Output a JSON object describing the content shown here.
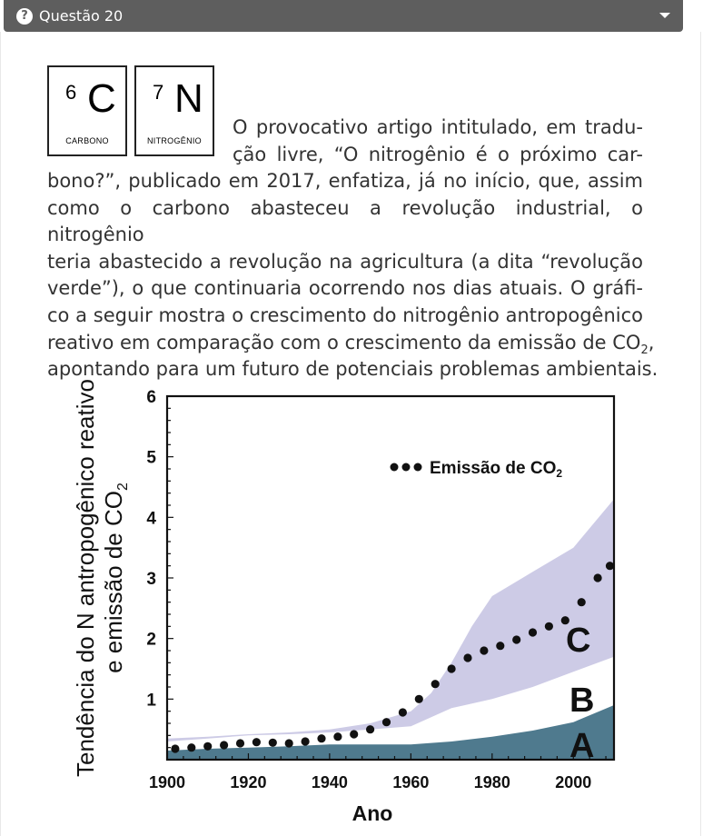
{
  "header": {
    "icon": "question-circle-icon",
    "title": "Questão 20",
    "caret": "chevron-down-icon"
  },
  "cards": [
    {
      "number": "6",
      "symbol": "C",
      "name": "CARBONO"
    },
    {
      "number": "7",
      "symbol": "N",
      "name": "NITROGÊNIO"
    }
  ],
  "text": {
    "l1": "O provocativo artigo intitulado, em tradu-",
    "l2": "ção livre, “O nitrogênio é o próximo car-",
    "l3": "bono?”, publicado em 2017, enfatiza, já no início, que, assim",
    "l4": "como o carbono abasteceu a revolução industrial, o nitrogênio",
    "l5": "teria abastecido a revolução na agricultura (a dita “revolução",
    "l6": "verde”), o que continuaria ocorrendo nos dias atuais. O gráfi-",
    "l7": "co a seguir mostra o crescimento do nitrogênio antropogênico",
    "l8a": "reativo em comparação com o crescimento da emissão de CO",
    "l8b": "2",
    "l8c": ",",
    "l9": "apontando para um futuro de potenciais problemas ambientais."
  },
  "colors": {
    "band_c": "#cdcbe6",
    "area_a": "#4f7a8e",
    "dots": "#111111",
    "header_bg": "#5e5e5e"
  },
  "chart_data": {
    "type": "area",
    "xlabel": "Ano",
    "ylabel_line1": "Tendência do N antropogênico reativo",
    "ylabel_line2": "e emissão de CO",
    "ylabel_sub": "2",
    "xlim": [
      1900,
      2010
    ],
    "ylim": [
      0,
      6
    ],
    "x_ticks": [
      1900,
      1920,
      1940,
      1960,
      1980,
      2000
    ],
    "y_ticks": [
      1,
      2,
      3,
      4,
      5,
      6
    ],
    "legend": {
      "label": "Emissão de CO",
      "sub": "2",
      "position": "top-right"
    },
    "series": [
      {
        "name": "A",
        "x": [
          1900,
          1910,
          1920,
          1930,
          1940,
          1950,
          1960,
          1970,
          1980,
          1990,
          2000,
          2010
        ],
        "values": [
          0.15,
          0.18,
          0.2,
          0.22,
          0.25,
          0.25,
          0.25,
          0.3,
          0.38,
          0.48,
          0.62,
          0.9
        ]
      },
      {
        "name": "B",
        "x": [
          1900,
          1910,
          1920,
          1930,
          1940,
          1950,
          1960,
          1970,
          1980,
          1990,
          2000,
          2010
        ],
        "values": [
          0.3,
          0.35,
          0.4,
          0.42,
          0.45,
          0.5,
          0.55,
          0.85,
          1.0,
          1.2,
          1.45,
          1.7
        ]
      },
      {
        "name": "C",
        "x": [
          1900,
          1910,
          1920,
          1930,
          1940,
          1950,
          1960,
          1965,
          1970,
          1975,
          1980,
          1990,
          2000,
          2010
        ],
        "values": [
          0.35,
          0.38,
          0.42,
          0.45,
          0.5,
          0.6,
          0.8,
          1.1,
          1.6,
          2.2,
          2.7,
          3.1,
          3.5,
          4.3
        ]
      },
      {
        "name": "Emissão de CO2",
        "x": [
          1902,
          1906,
          1910,
          1914,
          1918,
          1922,
          1926,
          1930,
          1934,
          1938,
          1942,
          1946,
          1950,
          1954,
          1958,
          1962,
          1966,
          1970,
          1974,
          1978,
          1982,
          1986,
          1990,
          1994,
          1998,
          2002,
          2006,
          2009
        ],
        "values": [
          0.18,
          0.2,
          0.22,
          0.24,
          0.27,
          0.29,
          0.28,
          0.27,
          0.3,
          0.35,
          0.38,
          0.42,
          0.5,
          0.62,
          0.78,
          1.0,
          1.25,
          1.5,
          1.68,
          1.8,
          1.88,
          1.98,
          2.1,
          2.2,
          2.3,
          2.6,
          3.0,
          3.2
        ]
      }
    ],
    "region_labels": [
      "C",
      "B",
      "A"
    ]
  }
}
